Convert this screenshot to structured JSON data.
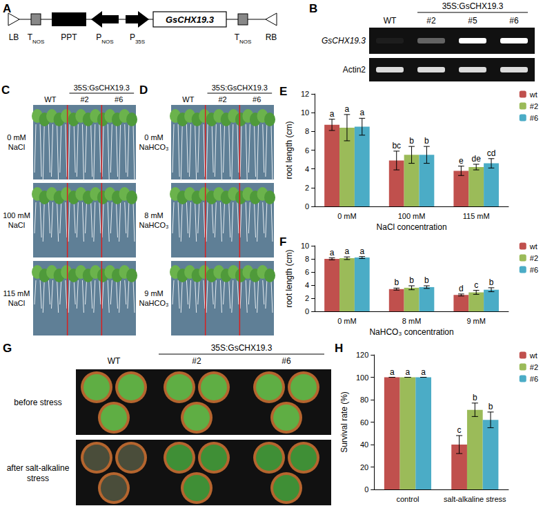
{
  "panels": {
    "A": {
      "letter": "A",
      "elements": [
        {
          "text": "LB"
        },
        {
          "text": "T",
          "sub": "NOS"
        },
        {
          "text": "PPT"
        },
        {
          "text": "P",
          "sub": "NOS"
        },
        {
          "text": "P",
          "sub": "35S"
        },
        {
          "text": "GsCHX19.3"
        },
        {
          "text": "T",
          "sub": "NOS"
        },
        {
          "text": "RB"
        }
      ]
    },
    "B": {
      "letter": "B",
      "header": "35S:GsCHX19.3",
      "lanes": [
        "WT",
        "#2",
        "#5",
        "#6"
      ],
      "rows": [
        "GsCHX19.3",
        "Actin2"
      ]
    },
    "C": {
      "letter": "C",
      "header": "35S:GsCHX19.3",
      "lanes": [
        "WT",
        "#2",
        "#6"
      ],
      "rows": [
        [
          "0 mM",
          "NaCl"
        ],
        [
          "100 mM",
          "NaCl"
        ],
        [
          "115 mM",
          "NaCl"
        ]
      ]
    },
    "D": {
      "letter": "D",
      "header": "35S:GsCHX19.3",
      "lanes": [
        "WT",
        "#2",
        "#6"
      ],
      "rows": [
        [
          "0 mM",
          "NaHCO₃"
        ],
        [
          "8 mM",
          "NaHCO₃"
        ],
        [
          "9 mM",
          "NaHCO₃"
        ]
      ]
    },
    "G": {
      "letter": "G",
      "header": "35S:GsCHX19.3",
      "lanes": [
        "WT",
        "#2",
        "#6"
      ],
      "rows": [
        [
          "before stress"
        ],
        [
          "after salt-alkaline",
          "stress"
        ]
      ]
    }
  },
  "chart_data": [
    {
      "type": "bar",
      "panel_label": "E",
      "categories": [
        "0 mM",
        "100 mM",
        "115 mM"
      ],
      "x_label": "NaCl concentration",
      "y_label": "root length (cm)",
      "ylim": [
        0,
        12
      ],
      "yticks": [
        0,
        2,
        4,
        6,
        8,
        10,
        12
      ],
      "grid": false,
      "legend": "right",
      "series": [
        {
          "name": "wt",
          "color": "#c0504d",
          "values": [
            8.7,
            4.9,
            3.8
          ],
          "errors": [
            0.6,
            1.0,
            0.5
          ],
          "letters": [
            "a",
            "bc",
            "e"
          ]
        },
        {
          "name": "#2",
          "color": "#9bbb59",
          "values": [
            8.4,
            5.5,
            4.2
          ],
          "errors": [
            1.4,
            0.9,
            0.3
          ],
          "letters": [
            "a",
            "b",
            "de"
          ]
        },
        {
          "name": "#6",
          "color": "#4bacc6",
          "values": [
            8.5,
            5.5,
            4.6
          ],
          "errors": [
            0.9,
            0.9,
            0.5
          ],
          "letters": [
            "a",
            "b",
            "cd"
          ]
        }
      ]
    },
    {
      "type": "bar",
      "panel_label": "F",
      "categories": [
        "0 mM",
        "8 mM",
        "9 mM"
      ],
      "x_label": "NaHCO₃ concentration",
      "y_label": "root length (cm)",
      "ylim": [
        0,
        10
      ],
      "yticks": [
        0,
        2,
        4,
        6,
        8,
        10
      ],
      "grid": false,
      "legend": "right",
      "series": [
        {
          "name": "wt",
          "color": "#c0504d",
          "values": [
            8.0,
            3.4,
            2.5
          ],
          "errors": [
            0.15,
            0.15,
            0.15
          ],
          "letters": [
            "a",
            "b",
            "d"
          ]
        },
        {
          "name": "#2",
          "color": "#9bbb59",
          "values": [
            8.1,
            3.6,
            2.9
          ],
          "errors": [
            0.2,
            0.3,
            0.3
          ],
          "letters": [
            "a",
            "b",
            "c"
          ]
        },
        {
          "name": "#6",
          "color": "#4bacc6",
          "values": [
            8.2,
            3.7,
            3.3
          ],
          "errors": [
            0.15,
            0.2,
            0.3
          ],
          "letters": [
            "a",
            "b",
            "b"
          ]
        }
      ]
    },
    {
      "type": "bar",
      "panel_label": "H",
      "categories": [
        "control",
        "salt-alkaline stress"
      ],
      "y_label": "Survival rate (%)",
      "ylim": [
        0,
        120
      ],
      "yticks": [
        0,
        20,
        40,
        60,
        80,
        100,
        120
      ],
      "grid": false,
      "legend": "right",
      "series": [
        {
          "name": "wt",
          "color": "#c0504d",
          "values": [
            100,
            40
          ],
          "errors": [
            0,
            8
          ],
          "letters": [
            "a",
            "c"
          ]
        },
        {
          "name": "#2",
          "color": "#9bbb59",
          "values": [
            100,
            71
          ],
          "errors": [
            0,
            6
          ],
          "letters": [
            "a",
            "b"
          ]
        },
        {
          "name": "#6",
          "color": "#4bacc6",
          "values": [
            100,
            62
          ],
          "errors": [
            0,
            7
          ],
          "letters": [
            "a",
            "b"
          ]
        }
      ]
    }
  ]
}
